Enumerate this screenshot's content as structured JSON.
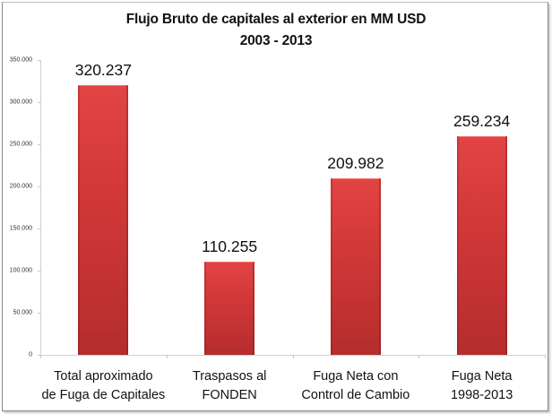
{
  "chart_data": {
    "type": "bar",
    "title": "Flujo Bruto de capitales al exterior en MM USD",
    "subtitle": "2003 - 2013",
    "xlabel": "",
    "ylabel": "",
    "ylim": [
      0,
      350000
    ],
    "yticks": [
      "0",
      "50.000",
      "100.000",
      "150.000",
      "200.000",
      "250.000",
      "300.000",
      "350.000"
    ],
    "categories": [
      [
        "Total aproximado",
        "de Fuga de Capitales"
      ],
      [
        "Traspasos al",
        "FONDEN"
      ],
      [
        "Fuga Neta con",
        "Control de Cambio"
      ],
      [
        "Fuga Neta",
        "1998-2013"
      ]
    ],
    "values": [
      320237,
      110255,
      209982,
      259234
    ],
    "value_labels": [
      "320.237",
      "110.255",
      "209.982",
      "259.234"
    ],
    "bar_color": "#d63a3a",
    "grid": false,
    "legend": "none"
  }
}
